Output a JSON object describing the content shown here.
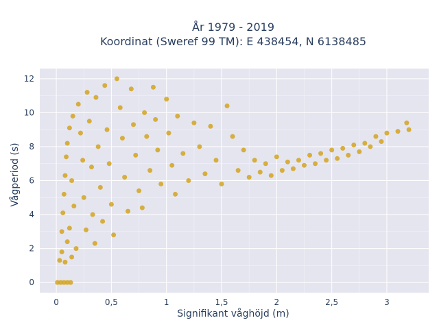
{
  "chart_data": {
    "type": "scatter",
    "title_line1": "År 1979 - 2019",
    "title_line2": "Koordinat (Sweref 99 TM): E 438454, N 6138485",
    "xlabel": "Signifikant våghöjd (m)",
    "ylabel": "Vågperiod (s)",
    "xlim": [
      -0.15,
      3.38
    ],
    "ylim": [
      -0.6,
      12.6
    ],
    "x_ticks": [
      0,
      0.5,
      1,
      1.5,
      2,
      2.5,
      3
    ],
    "x_tick_labels": [
      "0",
      "0,5",
      "1",
      "1,5",
      "2",
      "2,5",
      "3"
    ],
    "y_ticks": [
      0,
      2,
      4,
      6,
      8,
      10,
      12
    ],
    "y_tick_labels": [
      "0",
      "2",
      "4",
      "6",
      "8",
      "10",
      "12"
    ],
    "grid": true,
    "marker_color": "#D4A520",
    "background_color": "#E5E5F0",
    "series": [
      {
        "points": [
          [
            0.01,
            0
          ],
          [
            0.04,
            0
          ],
          [
            0.07,
            0
          ],
          [
            0.1,
            0
          ],
          [
            0.13,
            0
          ],
          [
            0.03,
            1.3
          ],
          [
            0.05,
            1.8
          ],
          [
            0.08,
            1.2
          ],
          [
            0.1,
            2.4
          ],
          [
            0.12,
            3.2
          ],
          [
            0.14,
            1.5
          ],
          [
            0.05,
            3.0
          ],
          [
            0.06,
            4.1
          ],
          [
            0.07,
            5.2
          ],
          [
            0.08,
            6.3
          ],
          [
            0.09,
            7.4
          ],
          [
            0.1,
            8.2
          ],
          [
            0.12,
            9.1
          ],
          [
            0.15,
            9.8
          ],
          [
            0.14,
            6.0
          ],
          [
            0.16,
            4.5
          ],
          [
            0.18,
            2.0
          ],
          [
            0.2,
            10.5
          ],
          [
            0.22,
            8.8
          ],
          [
            0.24,
            7.2
          ],
          [
            0.25,
            5.0
          ],
          [
            0.27,
            3.1
          ],
          [
            0.28,
            11.2
          ],
          [
            0.3,
            9.5
          ],
          [
            0.32,
            6.8
          ],
          [
            0.33,
            4.0
          ],
          [
            0.35,
            2.3
          ],
          [
            0.36,
            10.9
          ],
          [
            0.38,
            8.0
          ],
          [
            0.4,
            5.6
          ],
          [
            0.42,
            3.6
          ],
          [
            0.44,
            11.6
          ],
          [
            0.46,
            9.0
          ],
          [
            0.48,
            7.0
          ],
          [
            0.5,
            4.6
          ],
          [
            0.52,
            2.8
          ],
          [
            0.55,
            12.0
          ],
          [
            0.58,
            10.3
          ],
          [
            0.6,
            8.5
          ],
          [
            0.62,
            6.2
          ],
          [
            0.65,
            4.2
          ],
          [
            0.68,
            11.4
          ],
          [
            0.7,
            9.3
          ],
          [
            0.72,
            7.5
          ],
          [
            0.75,
            5.4
          ],
          [
            0.78,
            4.4
          ],
          [
            0.8,
            10.0
          ],
          [
            0.82,
            8.6
          ],
          [
            0.85,
            6.6
          ],
          [
            0.88,
            11.5
          ],
          [
            0.9,
            9.6
          ],
          [
            0.92,
            7.8
          ],
          [
            0.95,
            5.8
          ],
          [
            1.0,
            10.8
          ],
          [
            1.02,
            8.8
          ],
          [
            1.05,
            6.9
          ],
          [
            1.08,
            5.2
          ],
          [
            1.1,
            9.8
          ],
          [
            1.15,
            7.6
          ],
          [
            1.2,
            6.0
          ],
          [
            1.25,
            9.4
          ],
          [
            1.3,
            8.0
          ],
          [
            1.35,
            6.4
          ],
          [
            1.4,
            9.2
          ],
          [
            1.45,
            7.2
          ],
          [
            1.5,
            5.8
          ],
          [
            1.55,
            10.4
          ],
          [
            1.6,
            8.6
          ],
          [
            1.65,
            6.6
          ],
          [
            1.7,
            7.8
          ],
          [
            1.75,
            6.2
          ],
          [
            1.8,
            7.2
          ],
          [
            1.85,
            6.5
          ],
          [
            1.9,
            7.0
          ],
          [
            1.95,
            6.3
          ],
          [
            2.0,
            7.4
          ],
          [
            2.05,
            6.6
          ],
          [
            2.1,
            7.1
          ],
          [
            2.15,
            6.7
          ],
          [
            2.2,
            7.2
          ],
          [
            2.25,
            6.9
          ],
          [
            2.3,
            7.5
          ],
          [
            2.35,
            7.0
          ],
          [
            2.4,
            7.6
          ],
          [
            2.45,
            7.2
          ],
          [
            2.5,
            7.8
          ],
          [
            2.55,
            7.3
          ],
          [
            2.6,
            7.9
          ],
          [
            2.65,
            7.5
          ],
          [
            2.7,
            8.1
          ],
          [
            2.75,
            7.7
          ],
          [
            2.8,
            8.2
          ],
          [
            2.85,
            8.0
          ],
          [
            2.9,
            8.6
          ],
          [
            2.95,
            8.3
          ],
          [
            3.0,
            8.8
          ],
          [
            3.1,
            8.9
          ],
          [
            3.18,
            9.4
          ],
          [
            3.2,
            9.0
          ]
        ]
      }
    ]
  }
}
